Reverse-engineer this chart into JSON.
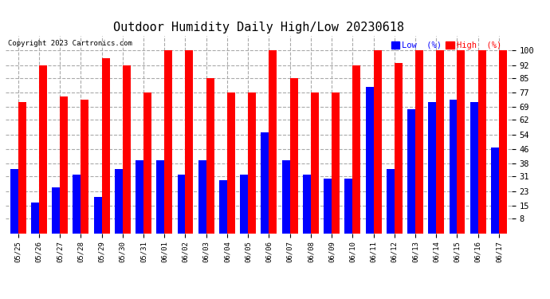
{
  "title": "Outdoor Humidity Daily High/Low 20230618",
  "copyright": "Copyright 2023 Cartronics.com",
  "legend_low": "Low  (%)",
  "legend_high": "High  (%)",
  "dates": [
    "05/25",
    "05/26",
    "05/27",
    "05/28",
    "05/29",
    "05/30",
    "05/31",
    "06/01",
    "06/02",
    "06/03",
    "06/04",
    "06/05",
    "06/06",
    "06/07",
    "06/08",
    "06/09",
    "06/10",
    "06/11",
    "06/12",
    "06/13",
    "06/14",
    "06/15",
    "06/16",
    "06/17"
  ],
  "high": [
    72,
    92,
    75,
    73,
    96,
    92,
    77,
    100,
    100,
    85,
    77,
    77,
    100,
    85,
    77,
    77,
    92,
    100,
    93,
    100,
    100,
    100,
    100,
    100
  ],
  "low": [
    35,
    17,
    25,
    32,
    20,
    35,
    40,
    40,
    32,
    40,
    29,
    32,
    55,
    40,
    32,
    30,
    30,
    80,
    35,
    68,
    72,
    73,
    72,
    47
  ],
  "bar_color_high": "#ff0000",
  "bar_color_low": "#0000ff",
  "bg_color": "#ffffff",
  "grid_color": "#aaaaaa",
  "title_color": "#000000",
  "yticks": [
    8,
    15,
    23,
    31,
    38,
    46,
    54,
    62,
    69,
    77,
    85,
    92,
    100
  ],
  "ylim": [
    0,
    108
  ],
  "bar_width": 0.38,
  "figwidth": 6.9,
  "figheight": 3.75,
  "dpi": 100
}
